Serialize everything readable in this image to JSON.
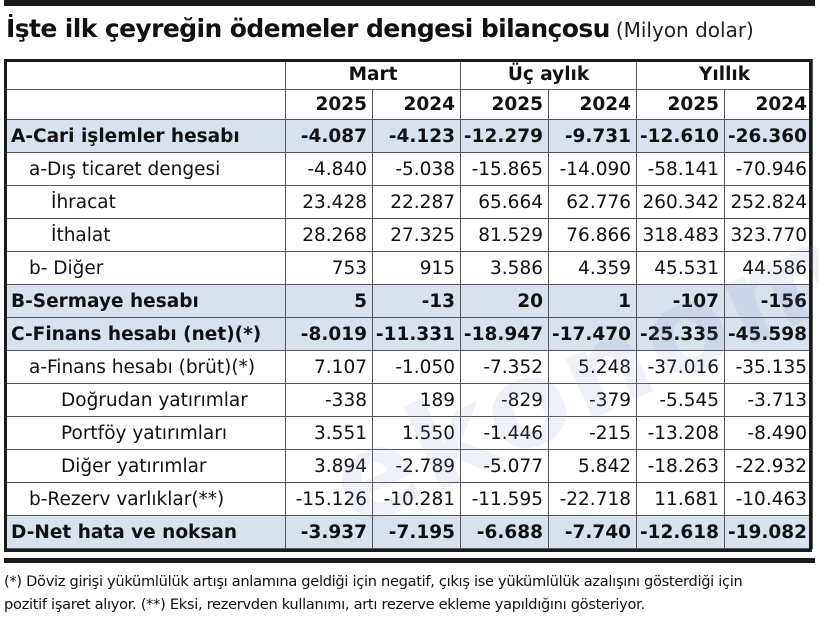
{
  "title": {
    "main": "İşte ilk çeyreğin ödemeler dengesi bilançosu",
    "unit": "(Milyon dolar)"
  },
  "watermark": "ekonomim",
  "table": {
    "groups": [
      "Mart",
      "Üç aylık",
      "Yıllık"
    ],
    "years": [
      "2025",
      "2024",
      "2025",
      "2024",
      "2025",
      "2024"
    ],
    "rows": [
      {
        "label": "A-Cari işlemler hesabı",
        "level": 0,
        "highlight": true,
        "values": [
          "-4.087",
          "-4.123",
          "-12.279",
          "-9.731",
          "-12.610",
          "-26.360"
        ]
      },
      {
        "label": "a-Dış ticaret dengesi",
        "level": 1,
        "highlight": false,
        "values": [
          "-4.840",
          "-5.038",
          "-15.865",
          "-14.090",
          "-58.141",
          "-70.946"
        ]
      },
      {
        "label": "İhracat",
        "level": 2,
        "highlight": false,
        "values": [
          "23.428",
          "22.287",
          "65.664",
          "62.776",
          "260.342",
          "252.824"
        ]
      },
      {
        "label": "İthalat",
        "level": 2,
        "highlight": false,
        "values": [
          "28.268",
          "27.325",
          "81.529",
          "76.866",
          "318.483",
          "323.770"
        ]
      },
      {
        "label": "b- Diğer",
        "level": 1,
        "highlight": false,
        "values": [
          "753",
          "915",
          "3.586",
          "4.359",
          "45.531",
          "44.586"
        ]
      },
      {
        "label": "B-Sermaye hesabı",
        "level": 0,
        "highlight": true,
        "values": [
          "5",
          "-13",
          "20",
          "1",
          "-107",
          "-156"
        ]
      },
      {
        "label": "C-Finans hesabı (net)(*)",
        "level": 0,
        "highlight": true,
        "values": [
          "-8.019",
          "-11.331",
          "-18.947",
          "-17.470",
          "-25.335",
          "-45.598"
        ]
      },
      {
        "label": "a-Finans hesabı (brüt)(*)",
        "level": 1,
        "highlight": false,
        "values": [
          "7.107",
          "-1.050",
          "-7.352",
          "5.248",
          "-37.016",
          "-35.135"
        ]
      },
      {
        "label": "Doğrudan yatırımlar",
        "level": 3,
        "highlight": false,
        "values": [
          "-338",
          "189",
          "-829",
          "-379",
          "-5.545",
          "-3.713"
        ]
      },
      {
        "label": "Portföy yatırımları",
        "level": 3,
        "highlight": false,
        "values": [
          "3.551",
          "1.550",
          "-1.446",
          "-215",
          "-13.208",
          "-8.490"
        ]
      },
      {
        "label": "Diğer yatırımlar",
        "level": 3,
        "highlight": false,
        "values": [
          "3.894",
          "-2.789",
          "-5.077",
          "5.842",
          "-18.263",
          "-22.932"
        ]
      },
      {
        "label": "b-Rezerv varlıklar(**)",
        "level": 1,
        "highlight": false,
        "values": [
          "-15.126",
          "-10.281",
          "-11.595",
          "-22.718",
          "11.681",
          "-10.463"
        ]
      },
      {
        "label": "D-Net hata ve noksan",
        "level": 0,
        "highlight": true,
        "values": [
          "-3.937",
          "-7.195",
          "-6.688",
          "-7.740",
          "-12.618",
          "-19.082"
        ]
      }
    ]
  },
  "footnote": {
    "line1": "(*) Döviz girişi yükümlülük artışı anlamına geldiği için negatif, çıkış ise yükümlülük azalışını gösterdiği için",
    "line2": "pozitif işaret alıyor. (**) Eksi, rezervden kullanımı, artı rezerve ekleme yapıldığını gösteriyor."
  },
  "colors": {
    "highlight_row": "#d7e2ee",
    "rule": "#1a1a1a"
  }
}
